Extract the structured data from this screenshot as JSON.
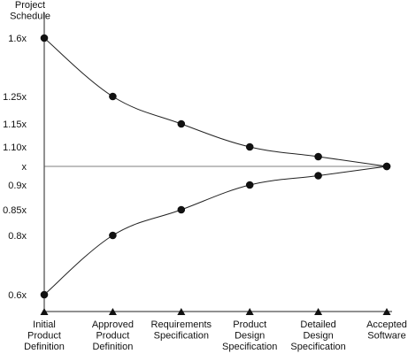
{
  "chart_data": {
    "type": "line",
    "title": "",
    "ylabel": [
      "Project",
      "Schedule"
    ],
    "xlabel": "",
    "categories": [
      [
        "Initial",
        "Product",
        "Definition"
      ],
      [
        "Approved",
        "Product",
        "Definition"
      ],
      [
        "Requirements",
        "Specification"
      ],
      [
        "Product",
        "Design",
        "Specification"
      ],
      [
        "Detailed",
        "Design",
        "Specification"
      ],
      [
        "Accepted",
        "Software"
      ]
    ],
    "y_tick_labels": [
      "1.6x",
      "1.25x",
      "1.15x",
      "1.10x",
      "x",
      "0.9x",
      "0.85x",
      "0.8x",
      "0.6x"
    ],
    "y_tick_values": [
      1.6,
      1.25,
      1.15,
      1.1,
      1.0,
      0.9,
      0.85,
      0.8,
      0.6
    ],
    "series": [
      {
        "values": [
          1.6,
          1.25,
          1.15,
          1.1,
          1.05,
          1.0
        ]
      },
      {
        "values": [
          0.6,
          0.8,
          0.85,
          0.9,
          0.95,
          1.0
        ]
      }
    ],
    "reference_line": 1.0,
    "grid": false,
    "legend": "none"
  }
}
